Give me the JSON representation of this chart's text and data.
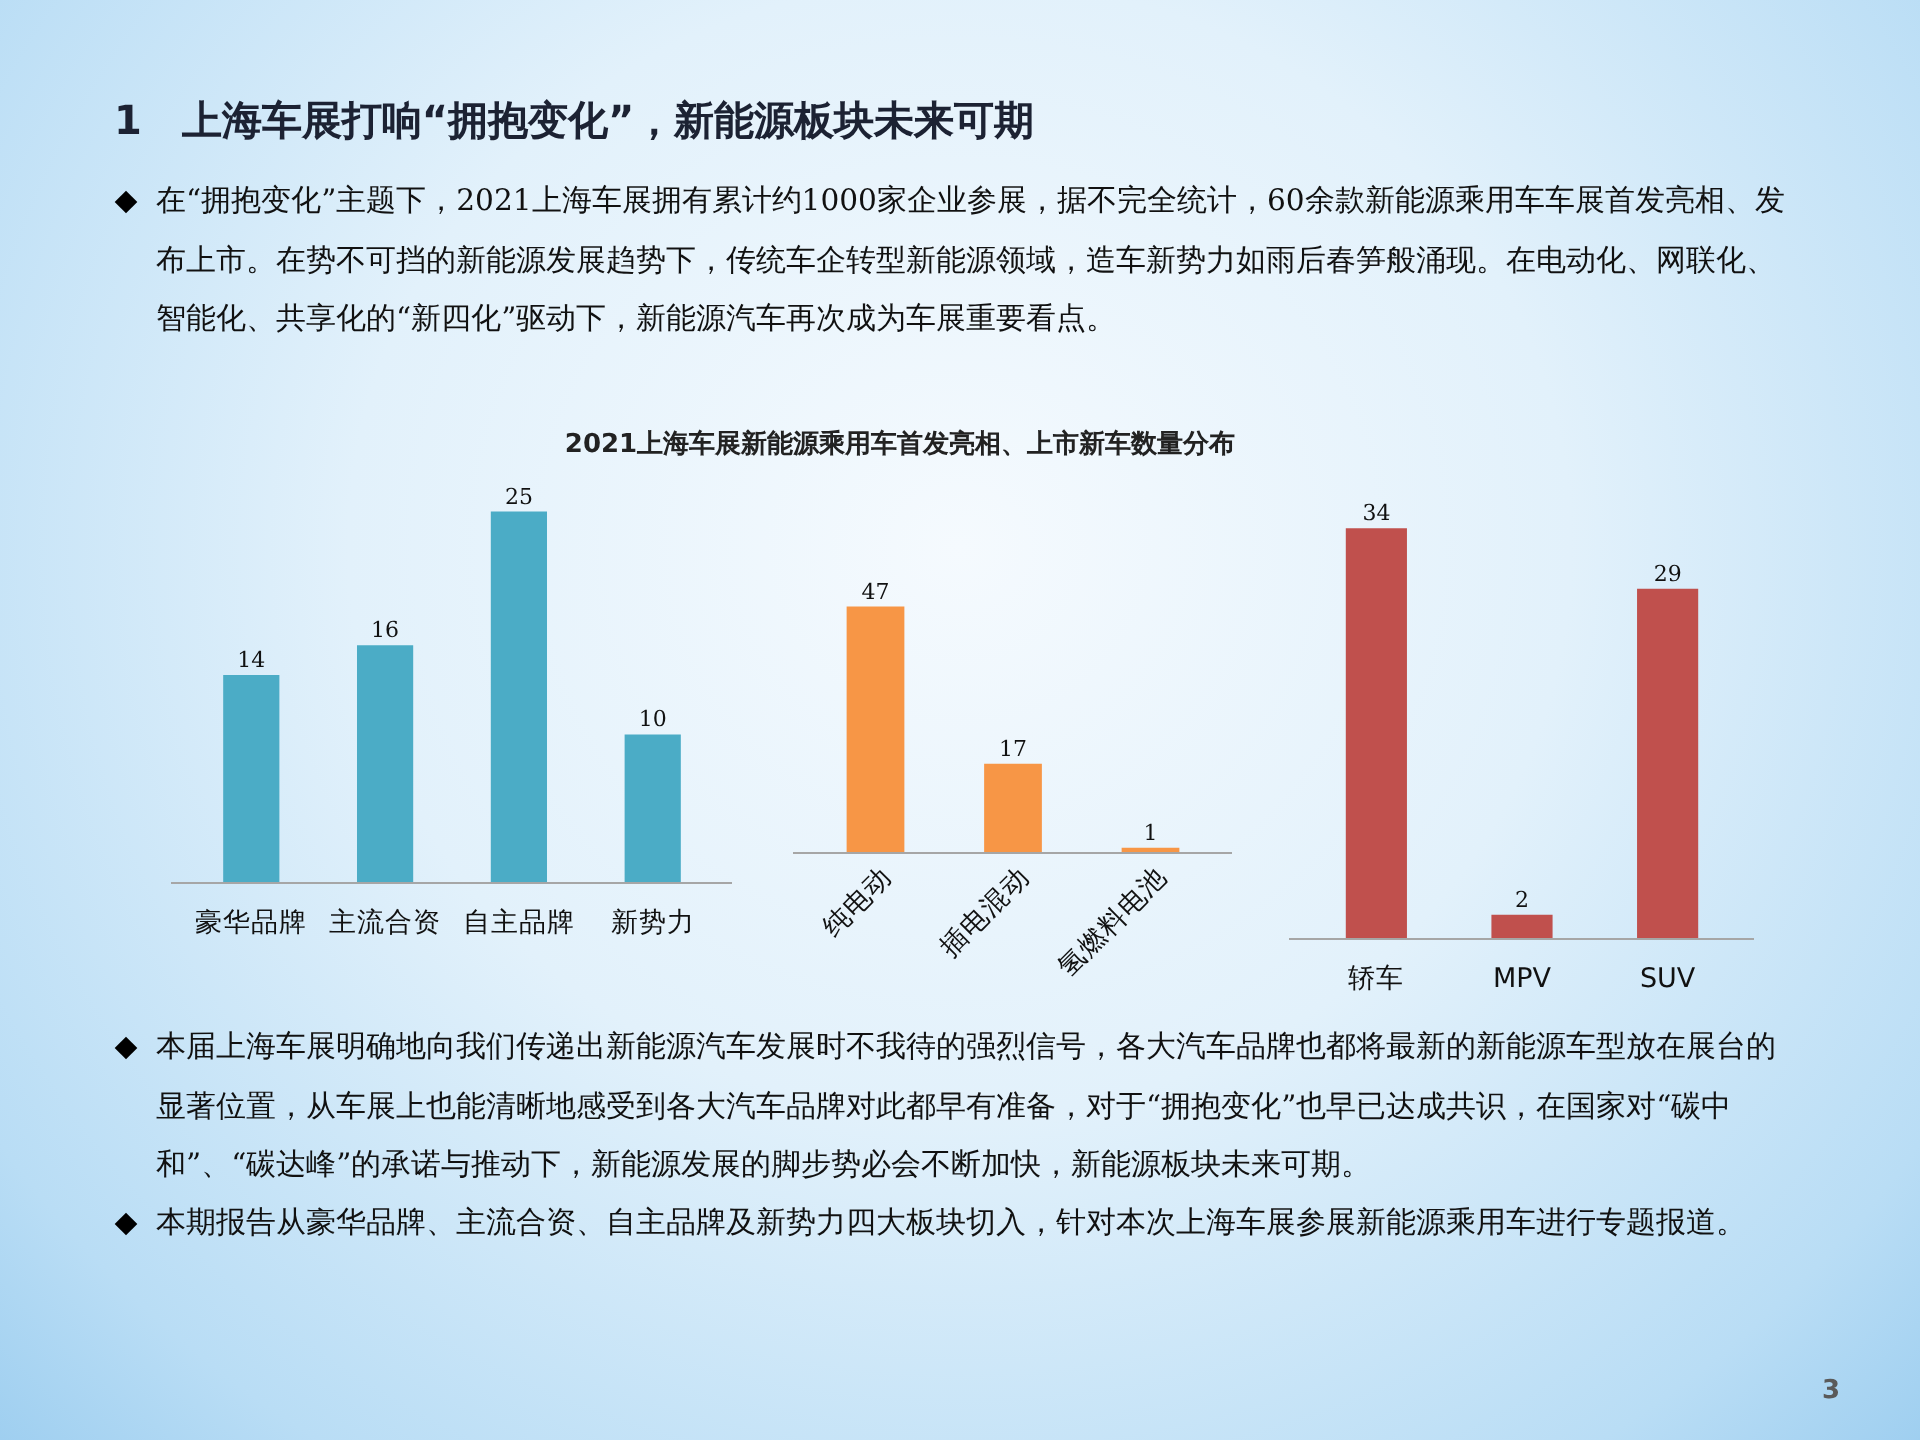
{
  "chart_data": [
    {
      "type": "other",
      "title": "1　上海车展打响“拥抱变化”，新能源板块未来可期",
      "annotations": [
        "在“拥抱变化”主题下，2021上海车展拥有累计约1000家企业参展，据不完全统计，60余款新能源乘用车车展首发亮相、发布上市。在势不可挡的新能源发展趋势下，传统车企转型新能源领域，造车新势力如雨后春笋般涌现。在电动化、网联化、智能化、共享化的“新四化”驱动下，新能源汽车再次成为车展重要看点。",
        "本届上海车展明确地向我们传递出新能源汽车发展时不我待的强烈信号，各大汽车品牌也都将最新的新能源车型放在展台的显著位置，从车展上也能清晰地感受到各大汽车品牌对此都早有准备，对于“拥抱变化”也早已达成共识，在国家对“碳中和”、“碳达峰”的承诺与推动下，新能源发展的脚步势必会不断加快，新能源板块未来可期。",
        "本期报告从豪华品牌、主流合资、自主品牌及新势力四大板块切入，针对本次上海车展参展新能源乘用车进行专题报道。",
        "3"
      ]
    },
    {
      "type": "bar",
      "title": "2021上海车展新能源乘用车首发亮相、上市新车数量分布",
      "categories": [
        "豪华品牌",
        "主流合资",
        "自主品牌",
        "新势力"
      ],
      "values": [
        14,
        16,
        25,
        10
      ],
      "color": "#4bacc6",
      "data_labels": true
    },
    {
      "type": "bar",
      "categories": [
        "纯电动",
        "插电混动",
        "氢燃料电池"
      ],
      "values": [
        47,
        17,
        1
      ],
      "color": "#f79646",
      "data_labels": true
    },
    {
      "type": "bar",
      "categories": [
        "轿车",
        "MPV",
        "SUV"
      ],
      "values": [
        34,
        2,
        29
      ],
      "color": "#c0504d",
      "data_labels": true
    }
  ]
}
